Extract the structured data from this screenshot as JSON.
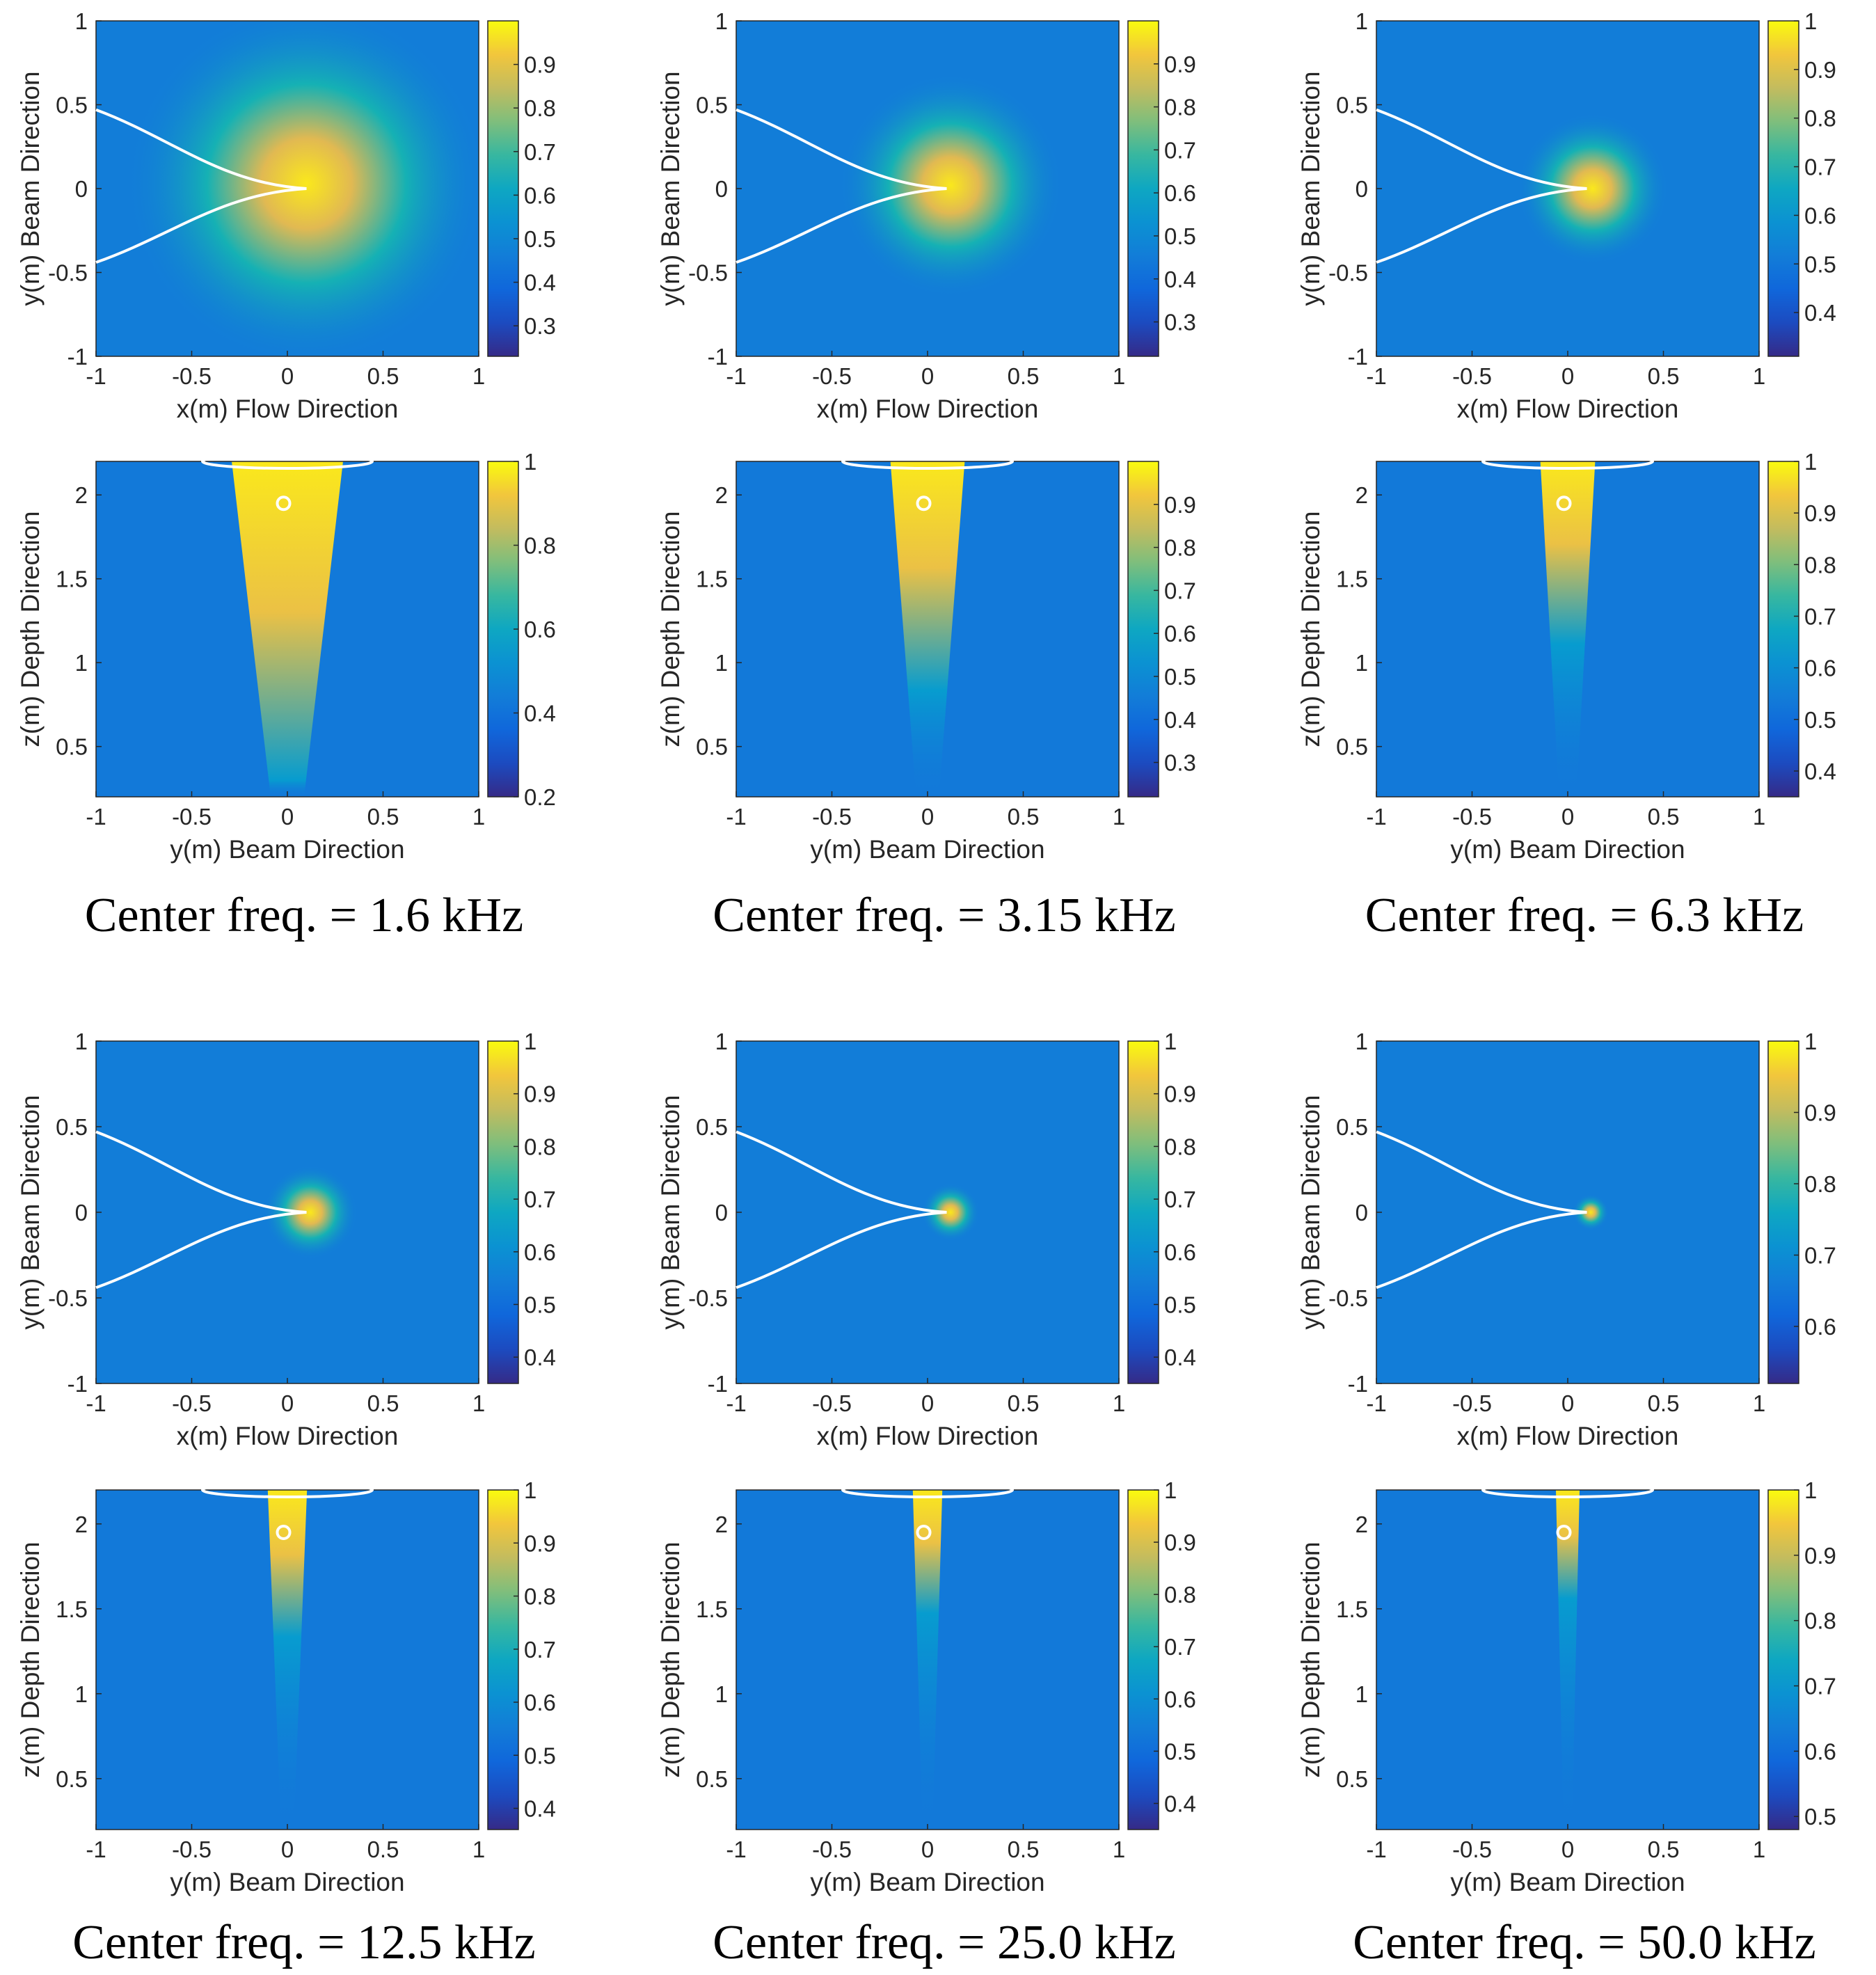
{
  "chart_data": [
    {
      "type": "heatmap",
      "panel": "row1-col1",
      "title": "",
      "xlabel": "x(m) Flow Direction",
      "ylabel": "y(m) Beam Direction",
      "xlim": [
        -1,
        1
      ],
      "ylim": [
        -1,
        1
      ],
      "xticks": [
        "-1",
        "-0.5",
        "0",
        "0.5",
        "1"
      ],
      "yticks": [
        "-1",
        "-0.5",
        "0",
        "0.5",
        "1"
      ],
      "colorbar": {
        "range": [
          0.23,
          1.0
        ],
        "ticks": [
          "0.3",
          "0.4",
          "0.5",
          "0.6",
          "0.7",
          "0.8",
          "0.9"
        ]
      },
      "peak": {
        "x": 0.1,
        "y": 0.03,
        "value": 1.0
      },
      "overlay": "airfoil-outline-top-view"
    },
    {
      "type": "heatmap",
      "panel": "row2-col1",
      "title": "",
      "xlabel": "y(m) Beam Direction",
      "ylabel": "z(m) Depth Direction",
      "xlim": [
        -1,
        1
      ],
      "ylim": [
        0.2,
        2.2
      ],
      "xticks": [
        "-1",
        "-0.5",
        "0",
        "0.5",
        "1"
      ],
      "yticks": [
        "0.5",
        "1",
        "1.5",
        "2"
      ],
      "colorbar": {
        "range": [
          0.2,
          1.0
        ],
        "ticks": [
          "0.2",
          "0.4",
          "0.6",
          "0.8",
          "1"
        ]
      },
      "peak": {
        "x": 0.0,
        "y": 1.95,
        "value": 1.0
      },
      "overlay": "array-outline-and-source-marker"
    },
    {
      "type": "heatmap",
      "panel": "row1-col2",
      "title": "",
      "xlabel": "x(m) Flow Direction",
      "ylabel": "y(m) Beam Direction",
      "xlim": [
        -1,
        1
      ],
      "ylim": [
        -1,
        1
      ],
      "xticks": [
        "-1",
        "-0.5",
        "0",
        "0.5",
        "1"
      ],
      "yticks": [
        "-1",
        "-0.5",
        "0",
        "0.5",
        "1"
      ],
      "colorbar": {
        "range": [
          0.22,
          1.0
        ],
        "ticks": [
          "0.3",
          "0.4",
          "0.5",
          "0.6",
          "0.7",
          "0.8",
          "0.9"
        ]
      },
      "peak": {
        "x": 0.12,
        "y": 0.02,
        "value": 1.0
      },
      "overlay": "airfoil-outline-top-view"
    },
    {
      "type": "heatmap",
      "panel": "row2-col2",
      "title": "",
      "xlabel": "y(m) Beam Direction",
      "ylabel": "z(m) Depth Direction",
      "xlim": [
        -1,
        1
      ],
      "ylim": [
        0.2,
        2.2
      ],
      "xticks": [
        "-1",
        "-0.5",
        "0",
        "0.5",
        "1"
      ],
      "yticks": [
        "0.5",
        "1",
        "1.5",
        "2"
      ],
      "colorbar": {
        "range": [
          0.22,
          1.0
        ],
        "ticks": [
          "0.3",
          "0.4",
          "0.5",
          "0.6",
          "0.7",
          "0.8",
          "0.9"
        ]
      },
      "peak": {
        "x": 0.0,
        "y": 1.95,
        "value": 1.0
      },
      "overlay": "array-outline-and-source-marker"
    },
    {
      "type": "heatmap",
      "panel": "row1-col3",
      "title": "",
      "xlabel": "x(m) Flow Direction",
      "ylabel": "y(m) Beam Direction",
      "xlim": [
        -1,
        1
      ],
      "ylim": [
        -1,
        1
      ],
      "xticks": [
        "-1",
        "-0.5",
        "0",
        "0.5",
        "1"
      ],
      "yticks": [
        "-1",
        "-0.5",
        "0",
        "0.5",
        "1"
      ],
      "colorbar": {
        "range": [
          0.31,
          1.0
        ],
        "ticks": [
          "0.4",
          "0.5",
          "0.6",
          "0.7",
          "0.8",
          "0.9",
          "1"
        ]
      },
      "peak": {
        "x": 0.13,
        "y": 0.0,
        "value": 1.0
      },
      "overlay": "airfoil-outline-top-view"
    },
    {
      "type": "heatmap",
      "panel": "row2-col3",
      "title": "",
      "xlabel": "y(m) Beam Direction",
      "ylabel": "z(m) Depth Direction",
      "xlim": [
        -1,
        1
      ],
      "ylim": [
        0.2,
        2.2
      ],
      "xticks": [
        "-1",
        "-0.5",
        "0",
        "0.5",
        "1"
      ],
      "yticks": [
        "0.5",
        "1",
        "1.5",
        "2"
      ],
      "colorbar": {
        "range": [
          0.35,
          1.0
        ],
        "ticks": [
          "0.4",
          "0.5",
          "0.6",
          "0.7",
          "0.8",
          "0.9",
          "1"
        ]
      },
      "peak": {
        "x": 0.0,
        "y": 1.95,
        "value": 1.0
      },
      "overlay": "array-outline-and-source-marker"
    },
    {
      "type": "heatmap",
      "panel": "row3-col1",
      "title": "",
      "xlabel": "x(m) Flow Direction",
      "ylabel": "y(m) Beam Direction",
      "xlim": [
        -1,
        1
      ],
      "ylim": [
        -1,
        1
      ],
      "xticks": [
        "-1",
        "-0.5",
        "0",
        "0.5",
        "1"
      ],
      "yticks": [
        "-1",
        "-0.5",
        "0",
        "0.5",
        "1"
      ],
      "colorbar": {
        "range": [
          0.35,
          1.0
        ],
        "ticks": [
          "0.4",
          "0.5",
          "0.6",
          "0.7",
          "0.8",
          "0.9",
          "1"
        ]
      },
      "peak": {
        "x": 0.12,
        "y": 0.0,
        "value": 1.0
      },
      "overlay": "airfoil-outline-top-view"
    },
    {
      "type": "heatmap",
      "panel": "row4-col1",
      "title": "",
      "xlabel": "y(m) Beam Direction",
      "ylabel": "z(m) Depth Direction",
      "xlim": [
        -1,
        1
      ],
      "ylim": [
        0.2,
        2.2
      ],
      "xticks": [
        "-1",
        "-0.5",
        "0",
        "0.5",
        "1"
      ],
      "yticks": [
        "0.5",
        "1",
        "1.5",
        "2"
      ],
      "colorbar": {
        "range": [
          0.36,
          1.0
        ],
        "ticks": [
          "0.4",
          "0.5",
          "0.6",
          "0.7",
          "0.8",
          "0.9",
          "1"
        ]
      },
      "peak": {
        "x": 0.0,
        "y": 1.95,
        "value": 1.0
      },
      "overlay": "array-outline-and-source-marker"
    },
    {
      "type": "heatmap",
      "panel": "row3-col2",
      "title": "",
      "xlabel": "x(m) Flow Direction",
      "ylabel": "y(m) Beam Direction",
      "xlim": [
        -1,
        1
      ],
      "ylim": [
        -1,
        1
      ],
      "xticks": [
        "-1",
        "-0.5",
        "0",
        "0.5",
        "1"
      ],
      "yticks": [
        "-1",
        "-0.5",
        "0",
        "0.5",
        "1"
      ],
      "colorbar": {
        "range": [
          0.35,
          1.0
        ],
        "ticks": [
          "0.4",
          "0.5",
          "0.6",
          "0.7",
          "0.8",
          "0.9",
          "1"
        ]
      },
      "peak": {
        "x": 0.12,
        "y": 0.0,
        "value": 1.0
      },
      "overlay": "airfoil-outline-top-view"
    },
    {
      "type": "heatmap",
      "panel": "row4-col2",
      "title": "",
      "xlabel": "y(m) Beam Direction",
      "ylabel": "z(m) Depth Direction",
      "xlim": [
        -1,
        1
      ],
      "ylim": [
        0.2,
        2.2
      ],
      "xticks": [
        "-1",
        "-0.5",
        "0",
        "0.5",
        "1"
      ],
      "yticks": [
        "0.5",
        "1",
        "1.5",
        "2"
      ],
      "colorbar": {
        "range": [
          0.35,
          1.0
        ],
        "ticks": [
          "0.4",
          "0.5",
          "0.6",
          "0.7",
          "0.8",
          "0.9",
          "1"
        ]
      },
      "peak": {
        "x": 0.0,
        "y": 1.95,
        "value": 1.0
      },
      "overlay": "array-outline-and-source-marker"
    },
    {
      "type": "heatmap",
      "panel": "row3-col3",
      "title": "",
      "xlabel": "x(m) Flow Direction",
      "ylabel": "y(m) Beam Direction",
      "xlim": [
        -1,
        1
      ],
      "ylim": [
        -1,
        1
      ],
      "xticks": [
        "-1",
        "-0.5",
        "0",
        "0.5",
        "1"
      ],
      "yticks": [
        "-1",
        "-0.5",
        "0",
        "0.5",
        "1"
      ],
      "colorbar": {
        "range": [
          0.52,
          1.0
        ],
        "ticks": [
          "0.6",
          "0.7",
          "0.8",
          "0.9",
          "1"
        ]
      },
      "peak": {
        "x": 0.12,
        "y": 0.0,
        "value": 1.0
      },
      "overlay": "airfoil-outline-top-view"
    },
    {
      "type": "heatmap",
      "panel": "row4-col3",
      "title": "",
      "xlabel": "y(m) Beam Direction",
      "ylabel": "z(m) Depth Direction",
      "xlim": [
        -1,
        1
      ],
      "ylim": [
        0.2,
        2.2
      ],
      "xticks": [
        "-1",
        "-0.5",
        "0",
        "0.5",
        "1"
      ],
      "yticks": [
        "0.5",
        "1",
        "1.5",
        "2"
      ],
      "colorbar": {
        "range": [
          0.48,
          1.0
        ],
        "ticks": [
          "0.5",
          "0.6",
          "0.7",
          "0.8",
          "0.9",
          "1"
        ]
      },
      "peak": {
        "x": 0.0,
        "y": 1.95,
        "value": 1.0
      },
      "overlay": "array-outline-and-source-marker"
    }
  ],
  "captions": [
    "Center freq. = 1.6 kHz",
    "Center freq. = 3.15 kHz",
    "Center freq. = 6.3 kHz",
    "Center freq. = 12.5 kHz",
    "Center freq. = 25.0 kHz",
    "Center freq. = 50.0 kHz"
  ],
  "colormap": "parula",
  "colors": {
    "low": "#352a87",
    "mid": "#12bed6",
    "high": "#f9fb0e",
    "overlay": "#ffffff"
  }
}
